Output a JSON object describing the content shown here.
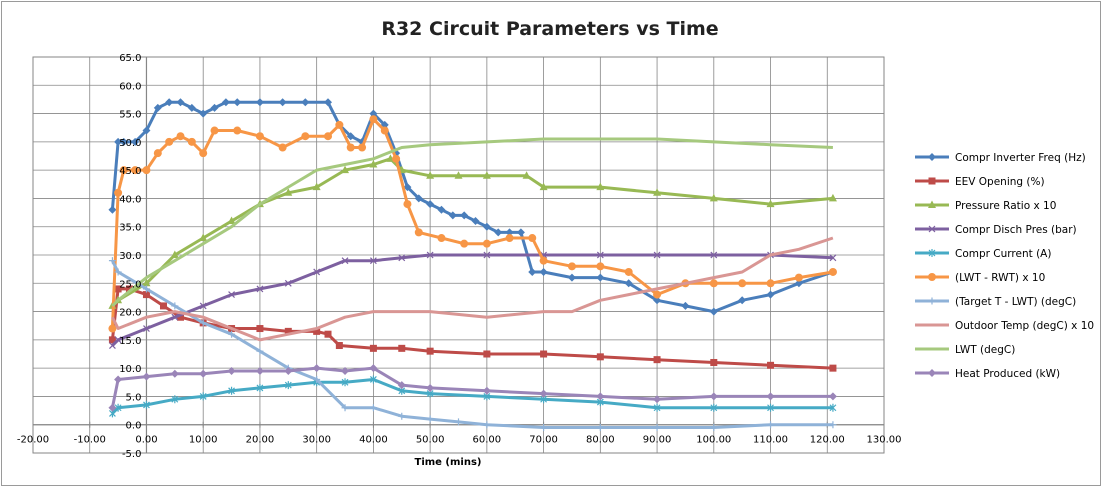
{
  "chart_data": {
    "type": "line",
    "title": "R32 Circuit Parameters vs Time",
    "xlabel": "Time (mins)",
    "ylabel": "",
    "xlim": [
      -20,
      130
    ],
    "ylim": [
      -5,
      65
    ],
    "x_ticks": [
      "-20.00",
      "-10.00",
      "0.00",
      "10.00",
      "20.00",
      "30.00",
      "40.00",
      "50.00",
      "60.00",
      "70.00",
      "80.00",
      "90.00",
      "100.00",
      "110.00",
      "120.00",
      "130.00"
    ],
    "y_ticks": [
      "-5.0",
      "0.0",
      "5.0",
      "10.0",
      "15.0",
      "20.0",
      "25.0",
      "30.0",
      "35.0",
      "40.0",
      "45.0",
      "50.0",
      "55.0",
      "60.0",
      "65.0"
    ],
    "grid": true,
    "legend_position": "right",
    "series": [
      {
        "name": "Compr Inverter Freq (Hz)",
        "color": "#4a7ebb",
        "marker": "diamond",
        "x": [
          -6,
          -5,
          -4,
          -2,
          0,
          2,
          4,
          6,
          8,
          10,
          12,
          14,
          16,
          20,
          24,
          28,
          32,
          34,
          36,
          38,
          40,
          42,
          44,
          46,
          48,
          50,
          52,
          54,
          56,
          58,
          60,
          62,
          64,
          66,
          68,
          70,
          75,
          80,
          85,
          90,
          95,
          100,
          105,
          110,
          115,
          121
        ],
        "y": [
          38,
          50,
          50,
          50,
          52,
          56,
          57,
          57,
          56,
          55,
          56,
          57,
          57,
          57,
          57,
          57,
          57,
          53,
          51,
          50,
          55,
          53,
          48,
          42,
          40,
          39,
          38,
          37,
          37,
          36,
          35,
          34,
          34,
          34,
          27,
          27,
          26,
          26,
          25,
          22,
          21,
          20,
          22,
          23,
          25,
          27
        ]
      },
      {
        "name": "EEV Opening (%)",
        "color": "#be4b48",
        "marker": "square",
        "x": [
          -6,
          -5,
          -3,
          0,
          3,
          6,
          10,
          15,
          20,
          25,
          30,
          32,
          34,
          40,
          45,
          50,
          60,
          70,
          80,
          90,
          100,
          110,
          121
        ],
        "y": [
          15,
          24,
          24,
          23,
          21,
          19,
          18,
          17,
          17,
          16.5,
          16.5,
          16,
          14,
          13.5,
          13.5,
          13,
          12.5,
          12.5,
          12,
          11.5,
          11,
          10.5,
          10
        ]
      },
      {
        "name": "Pressure Ratio x 10",
        "color": "#98b954",
        "marker": "triangle",
        "x": [
          -6,
          -5,
          0,
          5,
          10,
          15,
          20,
          25,
          30,
          35,
          40,
          43,
          45,
          50,
          55,
          60,
          67,
          70,
          80,
          90,
          100,
          110,
          121
        ],
        "y": [
          21,
          22,
          25,
          30,
          33,
          36,
          39,
          41,
          42,
          45,
          46,
          47,
          45,
          44,
          44,
          44,
          44,
          42,
          42,
          41,
          40,
          39,
          40
        ]
      },
      {
        "name": "Compr Disch Pres (bar)",
        "color": "#7d60a0",
        "marker": "x",
        "x": [
          -6,
          -5,
          0,
          5,
          10,
          15,
          20,
          25,
          30,
          35,
          40,
          45,
          50,
          60,
          70,
          80,
          90,
          100,
          110,
          121
        ],
        "y": [
          14,
          15,
          17,
          19,
          21,
          23,
          24,
          25,
          27,
          29,
          29,
          29.5,
          30,
          30,
          30,
          30,
          30,
          30,
          30,
          29.5
        ]
      },
      {
        "name": "Compr Current (A)",
        "color": "#46aac5",
        "marker": "asterisk",
        "x": [
          -6,
          -5,
          0,
          5,
          10,
          15,
          20,
          25,
          30,
          35,
          40,
          45,
          50,
          60,
          70,
          80,
          90,
          100,
          110,
          121
        ],
        "y": [
          2,
          3,
          3.5,
          4.5,
          5,
          6,
          6.5,
          7,
          7.5,
          7.5,
          8,
          6,
          5.5,
          5,
          4.5,
          4,
          3,
          3,
          3,
          3
        ]
      },
      {
        "name": "(LWT - RWT) x 10",
        "color": "#f79646",
        "marker": "circle",
        "x": [
          -6,
          -5,
          -4,
          -2,
          0,
          2,
          4,
          6,
          8,
          10,
          12,
          16,
          20,
          24,
          28,
          32,
          34,
          36,
          38,
          40,
          42,
          44,
          46,
          48,
          52,
          56,
          60,
          64,
          68,
          70,
          75,
          80,
          85,
          90,
          95,
          100,
          105,
          110,
          115,
          121
        ],
        "y": [
          17,
          41,
          45,
          45,
          45,
          48,
          50,
          51,
          50,
          48,
          52,
          52,
          51,
          49,
          51,
          51,
          53,
          49,
          49,
          54,
          52,
          47,
          39,
          34,
          33,
          32,
          32,
          33,
          33,
          29,
          28,
          28,
          27,
          23,
          25,
          25,
          25,
          25,
          26,
          27
        ]
      },
      {
        "name": "(Target T - LWT) (degC)",
        "color": "#8fb2d8",
        "marker": "plus",
        "x": [
          -6,
          -5,
          0,
          5,
          10,
          15,
          20,
          25,
          30,
          35,
          40,
          45,
          50,
          55,
          60,
          70,
          80,
          90,
          100,
          110,
          121
        ],
        "y": [
          29,
          27,
          24,
          21,
          18,
          16,
          13,
          10,
          8,
          3,
          3,
          1.5,
          1,
          0.5,
          0,
          -0.5,
          -0.5,
          -0.5,
          -0.5,
          0,
          0
        ]
      },
      {
        "name": "Outdoor Temp (degC) x 10",
        "color": "#d99694",
        "marker": "none",
        "x": [
          -6,
          -5,
          0,
          5,
          10,
          15,
          20,
          25,
          30,
          35,
          40,
          45,
          50,
          60,
          70,
          75,
          80,
          85,
          90,
          95,
          100,
          105,
          110,
          115,
          121
        ],
        "y": [
          19,
          17,
          19,
          20,
          19,
          17,
          15,
          16,
          17,
          19,
          20,
          20,
          20,
          19,
          20,
          20,
          22,
          23,
          24,
          25,
          26,
          27,
          30,
          31,
          33
        ]
      },
      {
        "name": "LWT (degC)",
        "color": "#a6c97e",
        "marker": "none",
        "x": [
          -6,
          -5,
          0,
          5,
          10,
          15,
          20,
          25,
          30,
          35,
          40,
          45,
          50,
          60,
          70,
          80,
          90,
          100,
          110,
          121
        ],
        "y": [
          21,
          22,
          26,
          29,
          32,
          35,
          39,
          42,
          45,
          46,
          47,
          49,
          49.5,
          50,
          50.5,
          50.5,
          50.5,
          50,
          49.5,
          49
        ]
      },
      {
        "name": "Heat Produced (kW)",
        "color": "#9a85b8",
        "marker": "diamond",
        "x": [
          -6,
          -5,
          0,
          5,
          10,
          15,
          20,
          25,
          30,
          35,
          40,
          45,
          50,
          60,
          70,
          80,
          90,
          100,
          110,
          121
        ],
        "y": [
          3,
          8,
          8.5,
          9,
          9,
          9.5,
          9.5,
          9.5,
          10,
          9.5,
          10,
          7,
          6.5,
          6,
          5.5,
          5,
          4.5,
          5,
          5,
          5
        ]
      }
    ]
  }
}
